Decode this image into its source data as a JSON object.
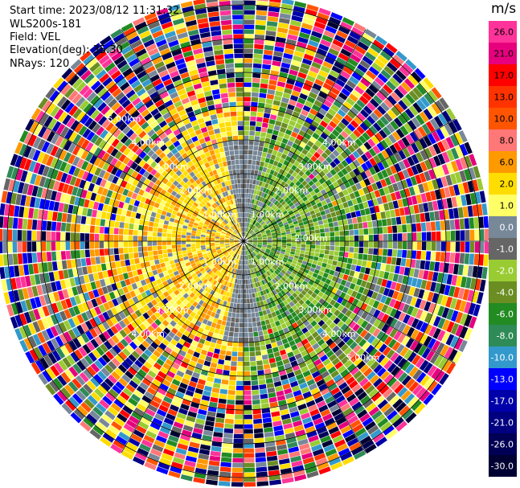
{
  "header": {
    "start_time": "Start time: 2023/08/12 11:31:32",
    "instrument": "WLS200s-181",
    "field": "Field: VEL",
    "elevation": "Elevation(deg): 35.30",
    "nrays": "NRays: 120"
  },
  "colorbar": {
    "unit": "m/s",
    "ticks": [
      "26.0",
      "21.0",
      "17.0",
      "13.0",
      "10.0",
      "8.0",
      "6.0",
      "2.0",
      "1.0",
      "0.0",
      "-1.0",
      "-2.0",
      "-4.0",
      "-6.0",
      "-8.0",
      "-10.0",
      "-13.0",
      "-17.0",
      "-21.0",
      "-26.0",
      "-30.0"
    ],
    "colors": [
      "#ff3399",
      "#e6007e",
      "#ff0000",
      "#ff3300",
      "#ff5500",
      "#ff7777",
      "#ff9900",
      "#ffdd00",
      "#ffff66",
      "#778899",
      "#666666",
      "#99cc33",
      "#6b8e23",
      "#228b22",
      "#2e8b57",
      "#3399cc",
      "#0000ff",
      "#0000aa",
      "#000080",
      "#000055",
      "#000033"
    ]
  },
  "chart_data": {
    "type": "ppi",
    "field": "VEL",
    "units": "m/s",
    "nrays": 120,
    "elevation_deg": 35.3,
    "range_ring_labels": [
      "1.00km",
      "2.00km",
      "3.00km",
      "4.00km",
      "5.00km"
    ],
    "range_ring_labels_displayed": [
      "1.00km",
      "1.00km",
      "1.00km",
      "1.00km",
      "2.00km",
      "2.00km",
      "2.00km",
      "2.00km",
      "2.00km",
      "3.00km",
      "3.00km",
      "3.00km",
      "3.00km",
      "4.00km",
      "4.00km",
      "4.00km",
      "4.00km",
      "5.00km",
      "5.00km"
    ],
    "color_scale": {
      "min": -30.0,
      "max": 26.0
    },
    "near_field_pattern": {
      "west_side": "approaching/positive (yellow-orange, ~2 to 6 m/s)",
      "east_side": "receding/negative (green, ~-2 to -6 m/s)",
      "center": "near zero (gray)"
    },
    "far_field": "noisy, full color range"
  }
}
